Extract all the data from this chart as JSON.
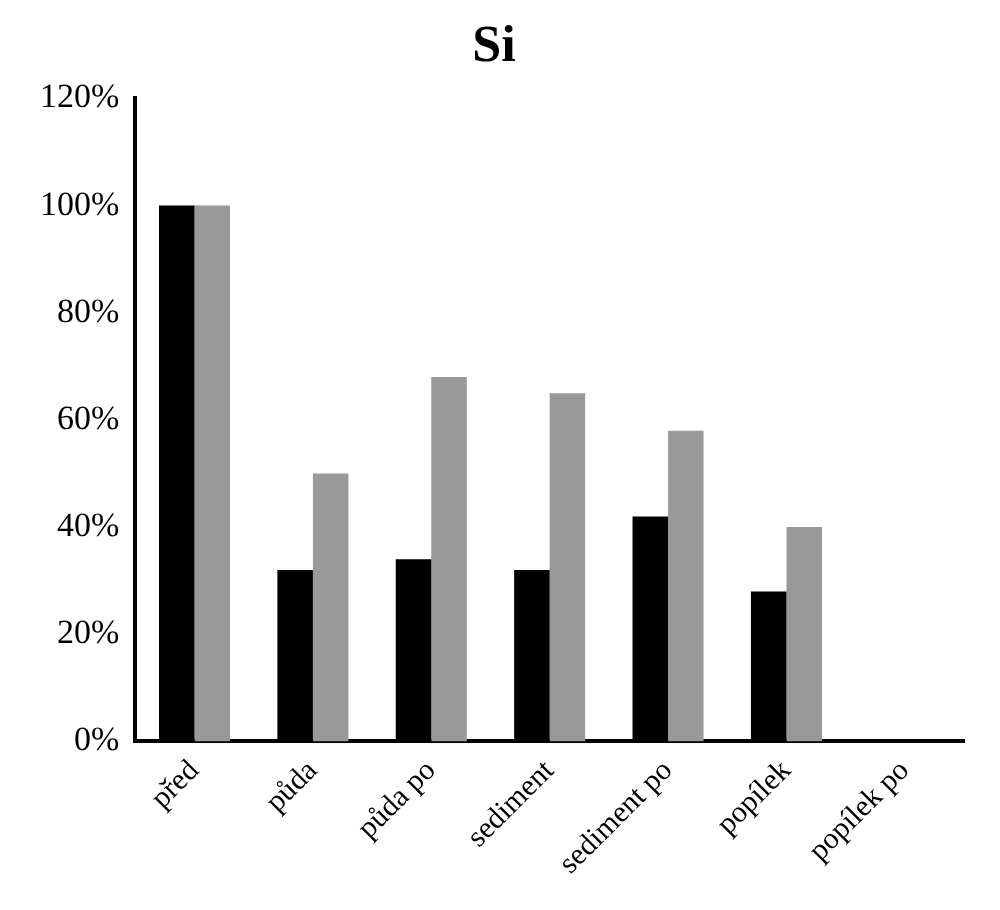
{
  "chart_data": {
    "type": "bar",
    "title": "Si",
    "categories": [
      "před",
      "půda",
      "půda po",
      "sediment",
      "sediment po",
      "popílek",
      "popílek po"
    ],
    "series": [
      {
        "color": "#000000",
        "values": [
          100,
          32,
          34,
          32,
          42,
          28,
          null
        ]
      },
      {
        "color": "#999999",
        "values": [
          100,
          50,
          68,
          65,
          58,
          40,
          null
        ]
      }
    ],
    "ylim": [
      0,
      120
    ],
    "yticks": [
      {
        "value": 0,
        "label": "0%"
      },
      {
        "value": 20,
        "label": "20%"
      },
      {
        "value": 40,
        "label": "40%"
      },
      {
        "value": 60,
        "label": "60%"
      },
      {
        "value": 80,
        "label": "80%"
      },
      {
        "value": 100,
        "label": "100%"
      },
      {
        "value": 120,
        "label": "120%"
      }
    ],
    "grid": false,
    "legend": false
  }
}
